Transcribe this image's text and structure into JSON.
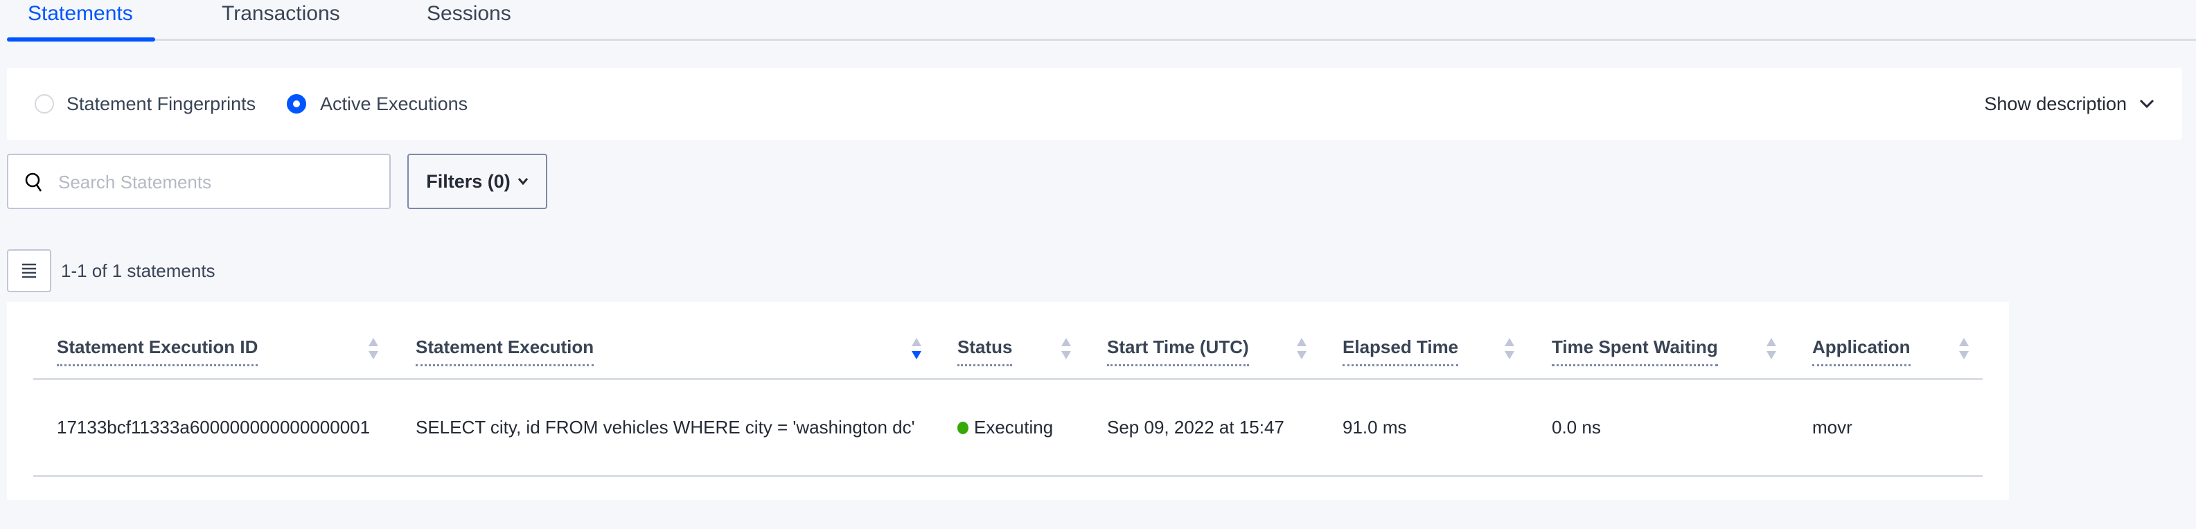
{
  "tabs": [
    {
      "label": "Statements",
      "active": true
    },
    {
      "label": "Transactions",
      "active": false
    },
    {
      "label": "Sessions",
      "active": false
    }
  ],
  "view_toggle": {
    "options": [
      {
        "label": "Statement Fingerprints",
        "selected": false
      },
      {
        "label": "Active Executions",
        "selected": true
      }
    ],
    "show_description": "Show description"
  },
  "search": {
    "placeholder": "Search Statements",
    "value": ""
  },
  "filters": {
    "label": "Filters (0)"
  },
  "result_count": "1-1 of 1 statements",
  "table": {
    "columns": [
      {
        "label": "Statement Execution ID",
        "sort": "none"
      },
      {
        "label": "Statement Execution",
        "sort": "descending"
      },
      {
        "label": "Status",
        "sort": "none"
      },
      {
        "label": "Start Time (UTC)",
        "sort": "none"
      },
      {
        "label": "Elapsed Time",
        "sort": "none"
      },
      {
        "label": "Time Spent Waiting",
        "sort": "none"
      },
      {
        "label": "Application",
        "sort": "none"
      }
    ],
    "rows": [
      [
        "17133bcf11333a600000000000000001",
        "SELECT city, id FROM vehicles WHERE city = 'washington dc'",
        "Executing",
        "Sep 09, 2022 at 15:47",
        "91.0 ms",
        "0.0 ns",
        "movr"
      ]
    ]
  },
  "colors": {
    "accent": "#0055ff",
    "executing": "#37a806",
    "sort_inactive": "#c0c6d9"
  }
}
